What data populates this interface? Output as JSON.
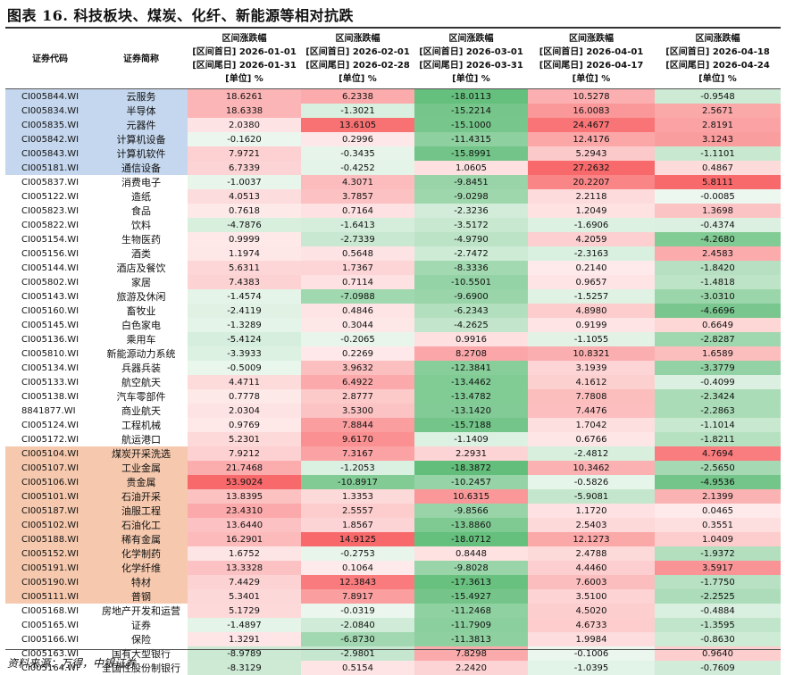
{
  "title": "图表 16.  科技板块、煤炭、化纤、新能源等相对抗跌",
  "source": "资料来源：万得，中银证券",
  "columns": {
    "code": "证券代码",
    "name": "证券简称",
    "periods": [
      {
        "l1": "区间涨跌幅",
        "l2": "[区间首日] 2026-01-01",
        "l3": "[区间尾日] 2026-01-31",
        "l4": "[单位] %"
      },
      {
        "l1": "区间涨跌幅",
        "l2": "[区间首日] 2026-02-01",
        "l3": "[区间尾日] 2026-02-28",
        "l4": "[单位] %"
      },
      {
        "l1": "区间涨跌幅",
        "l2": "[区间首日] 2026-03-01",
        "l3": "[区间尾日] 2026-03-31",
        "l4": "[单位] %"
      },
      {
        "l1": "区间涨跌幅",
        "l2": "[区间首日] 2026-04-01",
        "l3": "[区间尾日] 2026-04-17",
        "l4": "[单位] %"
      },
      {
        "l1": "区间涨跌幅",
        "l2": "[区间首日] 2026-04-18",
        "l3": "[区间尾日] 2026-04-24",
        "l4": "[单位] %"
      }
    ]
  },
  "colors": {
    "pos": "#f8696b",
    "neg": "#63be7b",
    "highlight_blue": "#c5d7ee",
    "highlight_orange": "#f6c9ae"
  },
  "rows": [
    {
      "code": "CI005844.WI",
      "name": "云服务",
      "group": "blue",
      "v": [
        "18.6261",
        "6.2338",
        "-18.0113",
        "10.5278",
        "-0.9548"
      ]
    },
    {
      "code": "CI005834.WI",
      "name": "半导体",
      "group": "blue",
      "v": [
        "18.6338",
        "-1.3021",
        "-15.2214",
        "16.0083",
        "2.5671"
      ]
    },
    {
      "code": "CI005835.WI",
      "name": "元器件",
      "group": "blue",
      "v": [
        "2.0380",
        "13.6105",
        "-15.1000",
        "24.4677",
        "2.8191"
      ]
    },
    {
      "code": "CI005842.WI",
      "name": "计算机设备",
      "group": "blue",
      "v": [
        "-0.1620",
        "0.2996",
        "-11.4315",
        "12.4176",
        "3.1243"
      ]
    },
    {
      "code": "CI005843.WI",
      "name": "计算机软件",
      "group": "blue",
      "v": [
        "7.9721",
        "-0.3435",
        "-15.8991",
        "5.2943",
        "-1.1101"
      ]
    },
    {
      "code": "CI005181.WI",
      "name": "通信设备",
      "group": "blue",
      "v": [
        "6.7339",
        "-0.4252",
        "1.0605",
        "27.2632",
        "0.4867"
      ]
    },
    {
      "code": "CI005837.WI",
      "name": "消费电子",
      "group": "",
      "v": [
        "-1.0037",
        "4.3071",
        "-9.8451",
        "20.2207",
        "5.8111"
      ]
    },
    {
      "code": "CI005122.WI",
      "name": "造纸",
      "group": "",
      "v": [
        "4.0513",
        "3.7857",
        "-9.0298",
        "2.2118",
        "-0.0085"
      ]
    },
    {
      "code": "CI005823.WI",
      "name": "食品",
      "group": "",
      "v": [
        "0.7618",
        "0.7164",
        "-2.3236",
        "1.2049",
        "1.3698"
      ]
    },
    {
      "code": "CI005822.WI",
      "name": "饮料",
      "group": "",
      "v": [
        "-4.7876",
        "-1.6413",
        "-3.5172",
        "-1.6906",
        "-0.4374"
      ]
    },
    {
      "code": "CI005154.WI",
      "name": "生物医药",
      "group": "",
      "v": [
        "0.9999",
        "-2.7339",
        "-4.9790",
        "4.2059",
        "-4.2680"
      ]
    },
    {
      "code": "CI005156.WI",
      "name": "酒类",
      "group": "",
      "v": [
        "1.1974",
        "0.5648",
        "-2.7472",
        "-2.3163",
        "2.4583"
      ]
    },
    {
      "code": "CI005144.WI",
      "name": "酒店及餐饮",
      "group": "",
      "v": [
        "5.6311",
        "1.7367",
        "-8.3336",
        "0.2140",
        "-1.8420"
      ]
    },
    {
      "code": "CI005802.WI",
      "name": "家居",
      "group": "",
      "v": [
        "7.4383",
        "0.7114",
        "-10.5501",
        "0.9657",
        "-1.4818"
      ]
    },
    {
      "code": "CI005143.WI",
      "name": "旅游及休闲",
      "group": "",
      "v": [
        "-1.4574",
        "-7.0988",
        "-9.6900",
        "-1.5257",
        "-3.0310"
      ]
    },
    {
      "code": "CI005160.WI",
      "name": "畜牧业",
      "group": "",
      "v": [
        "-2.4119",
        "0.4846",
        "-6.2343",
        "4.8980",
        "-4.6696"
      ]
    },
    {
      "code": "CI005145.WI",
      "name": "白色家电",
      "group": "",
      "v": [
        "-1.3289",
        "0.3044",
        "-4.2625",
        "0.9199",
        "0.6649"
      ]
    },
    {
      "code": "CI005136.WI",
      "name": "乘用车",
      "group": "",
      "v": [
        "-5.4124",
        "-0.2065",
        "0.9916",
        "-1.1055",
        "-2.8287"
      ]
    },
    {
      "code": "CI005810.WI",
      "name": "新能源动力系统",
      "group": "",
      "v": [
        "-3.3933",
        "0.2269",
        "8.2708",
        "10.8321",
        "1.6589"
      ]
    },
    {
      "code": "CI005134.WI",
      "name": "兵器兵装",
      "group": "",
      "v": [
        "-0.5009",
        "3.9632",
        "-12.3841",
        "3.1939",
        "-3.3779"
      ]
    },
    {
      "code": "CI005133.WI",
      "name": "航空航天",
      "group": "",
      "v": [
        "4.4711",
        "6.4922",
        "-13.4462",
        "4.1612",
        "-0.4099"
      ]
    },
    {
      "code": "CI005138.WI",
      "name": "汽车零部件",
      "group": "",
      "v": [
        "0.7778",
        "2.8777",
        "-13.4782",
        "7.7808",
        "-2.3424"
      ]
    },
    {
      "code": "8841877.WI",
      "name": "商业航天",
      "group": "",
      "v": [
        "2.0304",
        "3.5300",
        "-13.1420",
        "7.4476",
        "-2.2863"
      ]
    },
    {
      "code": "CI005124.WI",
      "name": "工程机械",
      "group": "",
      "v": [
        "0.9769",
        "7.8844",
        "-15.7188",
        "1.7042",
        "-1.1014"
      ]
    },
    {
      "code": "CI005172.WI",
      "name": "航运港口",
      "group": "",
      "v": [
        "5.2301",
        "9.6170",
        "-1.1409",
        "0.6766",
        "-1.8211"
      ]
    },
    {
      "code": "CI005104.WI",
      "name": "煤炭开采洗选",
      "group": "orange",
      "v": [
        "7.9212",
        "7.3167",
        "2.2931",
        "-2.4812",
        "4.7694"
      ]
    },
    {
      "code": "CI005107.WI",
      "name": "工业金属",
      "group": "orange",
      "v": [
        "21.7468",
        "-1.2053",
        "-18.3872",
        "10.3462",
        "-2.5650"
      ]
    },
    {
      "code": "CI005106.WI",
      "name": "贵金属",
      "group": "orange",
      "v": [
        "53.9024",
        "-10.8917",
        "-10.2457",
        "-0.5826",
        "-4.9536"
      ]
    },
    {
      "code": "CI005101.WI",
      "name": "石油开采",
      "group": "orange",
      "v": [
        "13.8395",
        "1.3353",
        "10.6315",
        "-5.9081",
        "2.1399"
      ]
    },
    {
      "code": "CI005187.WI",
      "name": "油服工程",
      "group": "orange",
      "v": [
        "23.4310",
        "2.5557",
        "-9.8566",
        "1.1720",
        "0.0465"
      ]
    },
    {
      "code": "CI005102.WI",
      "name": "石油化工",
      "group": "orange",
      "v": [
        "13.6440",
        "1.8567",
        "-13.8860",
        "2.5403",
        "0.3551"
      ]
    },
    {
      "code": "CI005188.WI",
      "name": "稀有金属",
      "group": "orange",
      "v": [
        "16.2901",
        "14.9125",
        "-18.0712",
        "12.1273",
        "1.0409"
      ]
    },
    {
      "code": "CI005152.WI",
      "name": "化学制药",
      "group": "orange",
      "v": [
        "1.6752",
        "-0.2753",
        "0.8448",
        "2.4788",
        "-1.9372"
      ]
    },
    {
      "code": "CI005191.WI",
      "name": "化学纤维",
      "group": "orange",
      "v": [
        "13.3328",
        "0.1064",
        "-9.8028",
        "4.4460",
        "3.5917"
      ]
    },
    {
      "code": "CI005190.WI",
      "name": "特材",
      "group": "orange",
      "v": [
        "7.4429",
        "12.3843",
        "-17.3613",
        "7.6003",
        "-1.7750"
      ]
    },
    {
      "code": "CI005111.WI",
      "name": "普钢",
      "group": "orange",
      "v": [
        "5.3401",
        "7.8917",
        "-15.4927",
        "3.5100",
        "-2.2525"
      ]
    },
    {
      "code": "CI005168.WI",
      "name": "房地产开发和运营",
      "group": "",
      "v": [
        "5.1729",
        "-0.0319",
        "-11.2468",
        "4.5020",
        "-0.4884"
      ]
    },
    {
      "code": "CI005165.WI",
      "name": "证券",
      "group": "",
      "v": [
        "-1.4897",
        "-2.0840",
        "-11.7909",
        "4.6733",
        "-1.3595"
      ]
    },
    {
      "code": "CI005166.WI",
      "name": "保险",
      "group": "",
      "v": [
        "1.3291",
        "-6.8730",
        "-11.3813",
        "1.9984",
        "-0.8630"
      ]
    },
    {
      "code": "CI005163.WI",
      "name": "国有大型银行",
      "group": "",
      "v": [
        "-8.9789",
        "-2.9801",
        "7.8298",
        "-0.1006",
        "0.9640"
      ]
    },
    {
      "code": "CI005164.WI",
      "name": "全国性股份制银行",
      "group": "",
      "v": [
        "-8.3129",
        "0.5154",
        "2.2420",
        "-1.0395",
        "-0.7609"
      ]
    }
  ]
}
